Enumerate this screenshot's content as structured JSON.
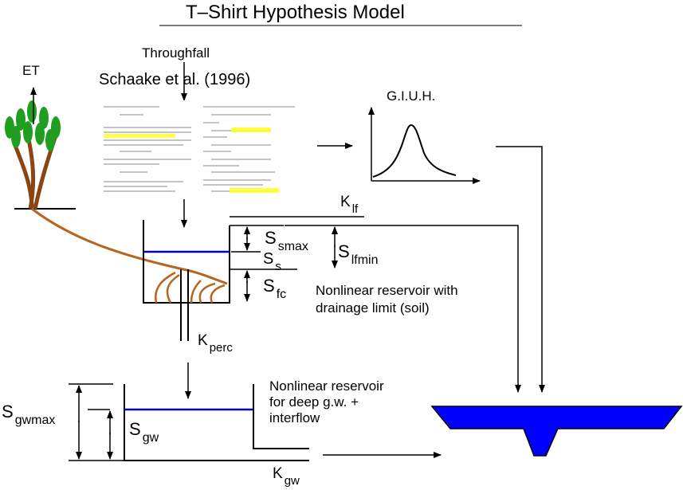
{
  "title": "T–Shirt Hypothesis Model",
  "labels": {
    "throughfall": "Throughfall",
    "et": "ET",
    "reference": "Schaake et al. (1996)",
    "giuh": "G.I.U.H.",
    "k_lf": "K",
    "k_lf_sub": "lf",
    "s_smax": "S",
    "s_smax_sub": "smax",
    "s_s": "S",
    "s_s_sub": "s",
    "s_lfmin": "S",
    "s_lfmin_sub": "lfmin",
    "s_fc": "S",
    "s_fc_sub": "fc",
    "soil_reservoir_line1": "Nonlinear reservoir with",
    "soil_reservoir_line2": "drainage limit (soil)",
    "k_perc": "K",
    "k_perc_sub": "perc",
    "gw_reservoir_line1": "Nonlinear reservoir",
    "gw_reservoir_line2": "for deep g.w. +",
    "gw_reservoir_line3": "interflow",
    "s_gwmax": "S",
    "s_gwmax_sub": "gwmax",
    "s_gw": "S",
    "s_gw_sub": "gw",
    "k_gw": "K",
    "k_gw_sub": "gw"
  },
  "colors": {
    "water_level": "#0000cc",
    "river": "#0000ff",
    "roots": "#b5651d",
    "canopy": "#1f9e1f",
    "highlight": "#ffff33"
  },
  "icons": {
    "tree": "tree-icon",
    "channel": "river-channel-icon",
    "paper": "paper-excerpt-image"
  }
}
